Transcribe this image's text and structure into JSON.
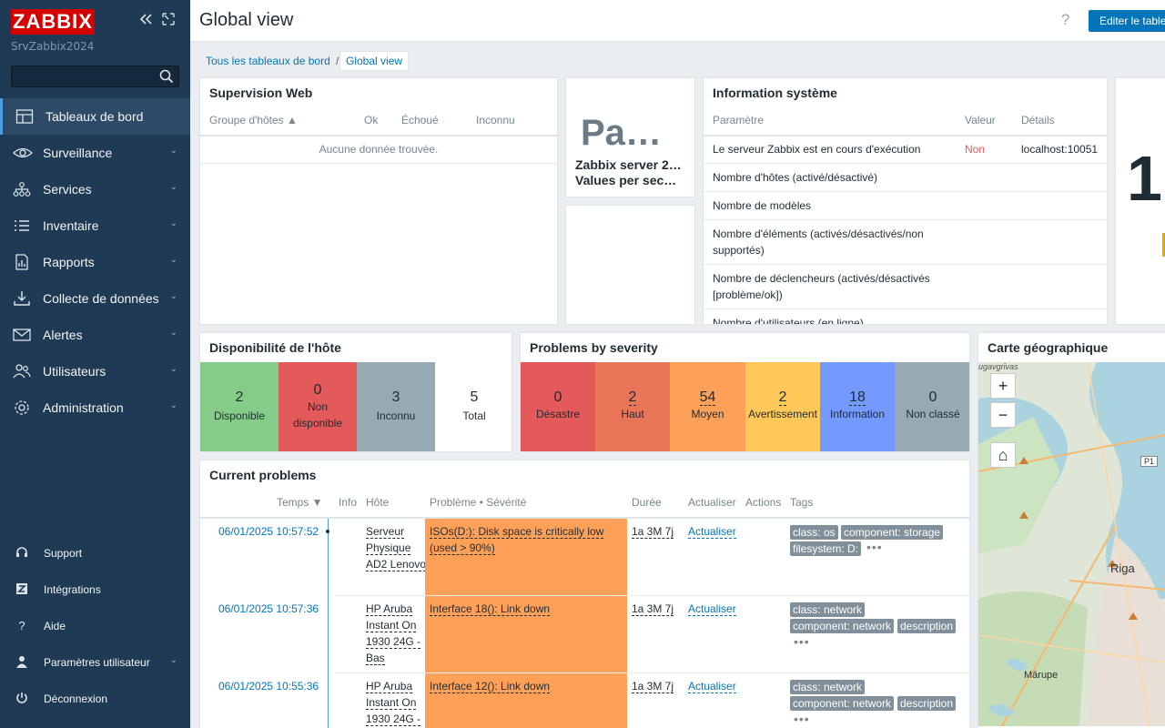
{
  "app": {
    "logo": "ZABBIX",
    "server_name": "SrvZabbix2024",
    "search_value": ""
  },
  "nav": [
    {
      "label": "Tableaux de bord",
      "icon": "dashboard-icon",
      "active": true
    },
    {
      "label": "Surveillance",
      "icon": "eye-icon"
    },
    {
      "label": "Services",
      "icon": "services-icon"
    },
    {
      "label": "Inventaire",
      "icon": "list-icon"
    },
    {
      "label": "Rapports",
      "icon": "report-icon"
    },
    {
      "label": "Collecte de données",
      "icon": "download-icon"
    },
    {
      "label": "Alertes",
      "icon": "envelope-icon"
    },
    {
      "label": "Utilisateurs",
      "icon": "users-icon"
    },
    {
      "label": "Administration",
      "icon": "gear-icon"
    }
  ],
  "bottom_nav": [
    {
      "label": "Support",
      "icon": "headset-icon"
    },
    {
      "label": "Intégrations",
      "icon": "integrations-icon"
    },
    {
      "label": "Aide",
      "icon": "help-icon"
    },
    {
      "label": "Paramètres utilisateur",
      "icon": "user-icon"
    },
    {
      "label": "Déconnexion",
      "icon": "power-icon"
    }
  ],
  "header": {
    "title": "Global view",
    "help": "?",
    "edit_button": "Editer le tableau de bord"
  },
  "breadcrumb": {
    "parent": "Tous les tableaux de bord",
    "separator": "/",
    "current": "Global view"
  },
  "web_widget": {
    "title": "Supervision Web",
    "columns": [
      "Groupe d'hôtes ▲",
      "Ok",
      "Échoué",
      "Inconnu"
    ],
    "empty": "Aucune donnée trouvée."
  },
  "item_widget": {
    "value": "Pa…",
    "line1": "Zabbix server 2…",
    "line2": "Values per sec…"
  },
  "sysinfo": {
    "title": "Information système",
    "columns": [
      "Paramètre",
      "Valeur",
      "Détails"
    ],
    "rows": [
      {
        "param": "Le serveur Zabbix est en cours d'exécution",
        "value": "Non",
        "details": "localhost:10051"
      },
      {
        "param": "Nombre d'hôtes (activé/désactivé)",
        "value": "",
        "details": ""
      },
      {
        "param": "Nombre de modèles",
        "value": "",
        "details": ""
      },
      {
        "param": "Nombre d'éléments (activés/désactivés/non supportés)",
        "value": "",
        "details": ""
      },
      {
        "param": "Nombre de déclencheurs (activés/désactivés [problème/ok])",
        "value": "",
        "details": ""
      },
      {
        "param": "Nombre d'utilisateurs (en ligne)",
        "value": "",
        "details": ""
      }
    ],
    "colors": {
      "bad": "#e45959"
    }
  },
  "right_widget": {
    "big_value": "1"
  },
  "availability": {
    "title": "Disponibilité de l'hôte",
    "cells": [
      {
        "value": "2",
        "label": "Disponible",
        "color": "#86cc89"
      },
      {
        "value": "0",
        "label": "Non disponible",
        "color": "#e45959"
      },
      {
        "value": "3",
        "label": "Inconnu",
        "color": "#97aab3"
      },
      {
        "value": "5",
        "label": "Total",
        "color": "#ffffff"
      }
    ]
  },
  "severity": {
    "title": "Problems by severity",
    "cells": [
      {
        "value": "0",
        "label": "Désastre",
        "color": "#e45959"
      },
      {
        "value": "2",
        "label": "Haut",
        "color": "#e97659"
      },
      {
        "value": "54",
        "label": "Moyen",
        "color": "#ffa059"
      },
      {
        "value": "2",
        "label": "Avertissement",
        "color": "#ffc859"
      },
      {
        "value": "18",
        "label": "Information",
        "color": "#7499ff"
      },
      {
        "value": "0",
        "label": "Non classé",
        "color": "#97aab3"
      }
    ]
  },
  "problems": {
    "title": "Current problems",
    "columns": [
      "Temps ▼",
      "Info",
      "Hôte",
      "Problème • Sévérité",
      "Durée",
      "Actualiser",
      "Actions",
      "Tags"
    ],
    "rows": [
      {
        "time": "06/01/2025 10:57:52",
        "host": "Serveur Physique AD2 Lenovo",
        "problem": "ISOs(D:): Disk space is critically low (used > 90%)",
        "duration": "1a 3M 7j",
        "update": "Actualiser",
        "tags": [
          "class: os",
          "component: storage",
          "filesystem: D:"
        ]
      },
      {
        "time": "06/01/2025 10:57:36",
        "host": "HP Aruba Instant On 1930 24G - Bas",
        "problem": "Interface 18(): Link down",
        "duration": "1a 3M 7j",
        "update": "Actualiser",
        "tags": [
          "class: network",
          "component: network",
          "description"
        ]
      },
      {
        "time": "06/01/2025 10:55:36",
        "host": "HP Aruba Instant On 1930 24G -",
        "problem": "Interface 12(): Link down",
        "duration": "1a 3M 7j",
        "update": "Actualiser",
        "tags": [
          "class: network",
          "component: network",
          "description"
        ]
      }
    ],
    "colors": {
      "moyen": "#ffa059"
    }
  },
  "map": {
    "title": "Carte géographique",
    "labels": {
      "city": "Riga",
      "district": "Mārupe",
      "road": "P1",
      "top": "ugavgrīvas"
    },
    "zoom_in": "+",
    "zoom_out": "−",
    "home": "⌂"
  }
}
